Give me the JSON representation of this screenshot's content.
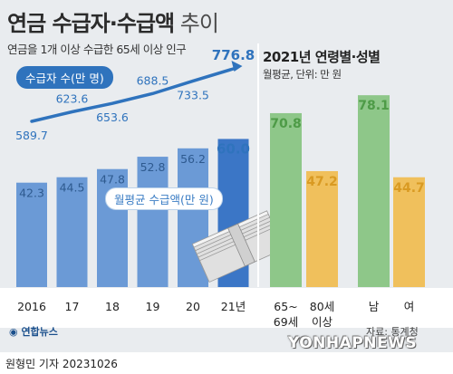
{
  "header": {
    "title_main": "연금 수급자·수급액",
    "title_sub": " 추이",
    "subtitle": "연금을 1개 이상 수급한 65세 이상 인구"
  },
  "chart_data": [
    {
      "type": "bar+line",
      "categories": [
        "2016",
        "17",
        "18",
        "19",
        "20",
        "21년"
      ],
      "series": [
        {
          "name": "수급자 수(만 명)",
          "type": "line",
          "values": [
            589.7,
            623.6,
            653.6,
            688.5,
            733.5,
            776.8
          ],
          "color": "#2f73bd"
        },
        {
          "name": "월평균 수급액(만 원)",
          "type": "bar",
          "values": [
            42.3,
            44.5,
            47.8,
            52.8,
            56.2,
            60.0
          ],
          "color": "#6b9ad6",
          "highlight_color": "#3b76c6"
        }
      ]
    },
    {
      "type": "bar",
      "title": "2021년 연령별·성별",
      "unit": "월평균, 단위: 만 원",
      "categories": [
        "65~\n69세",
        "80세\n이상",
        "남",
        "여"
      ],
      "values": [
        70.8,
        47.2,
        78.1,
        44.7
      ],
      "colors": [
        "#8ec789",
        "#f0c05c",
        "#8ec789",
        "#f0c05c"
      ],
      "label_colors": [
        "#4e9b47",
        "#d99a22",
        "#4e9b47",
        "#d99a22"
      ],
      "display_labels": [
        "70.8",
        "47.2",
        "78.1",
        "44.7"
      ]
    }
  ],
  "source": "자료: 통계청",
  "logo": "연합뉴스",
  "watermark": "YONHAPNEWS",
  "byline": "원형민 기자  20231026",
  "colors": {
    "background": "#e9ecef",
    "accent_blue": "#2f73bd",
    "bar_blue": "#6b9ad6",
    "green": "#8ec789",
    "orange": "#f0c05c"
  }
}
